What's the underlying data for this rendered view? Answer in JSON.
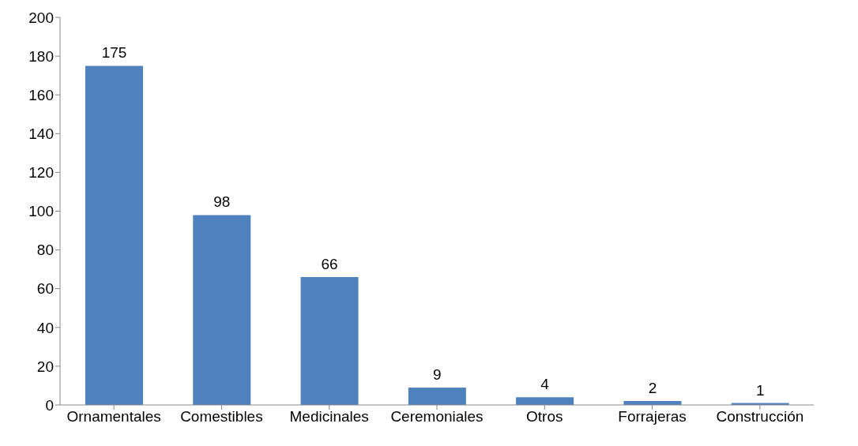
{
  "chart_data": {
    "type": "bar",
    "categories": [
      "Ornamentales",
      "Comestibles",
      "Medicinales",
      "Ceremoniales",
      "Otros",
      "Forrajeras",
      "Construcción"
    ],
    "values": [
      175,
      98,
      66,
      9,
      4,
      2,
      1
    ],
    "color": "#4f81bd",
    "ylim": [
      0,
      200
    ],
    "yticks": [
      0,
      20,
      40,
      60,
      80,
      100,
      120,
      140,
      160,
      180,
      200
    ],
    "grid": false,
    "data_labels": true,
    "legend": false
  }
}
